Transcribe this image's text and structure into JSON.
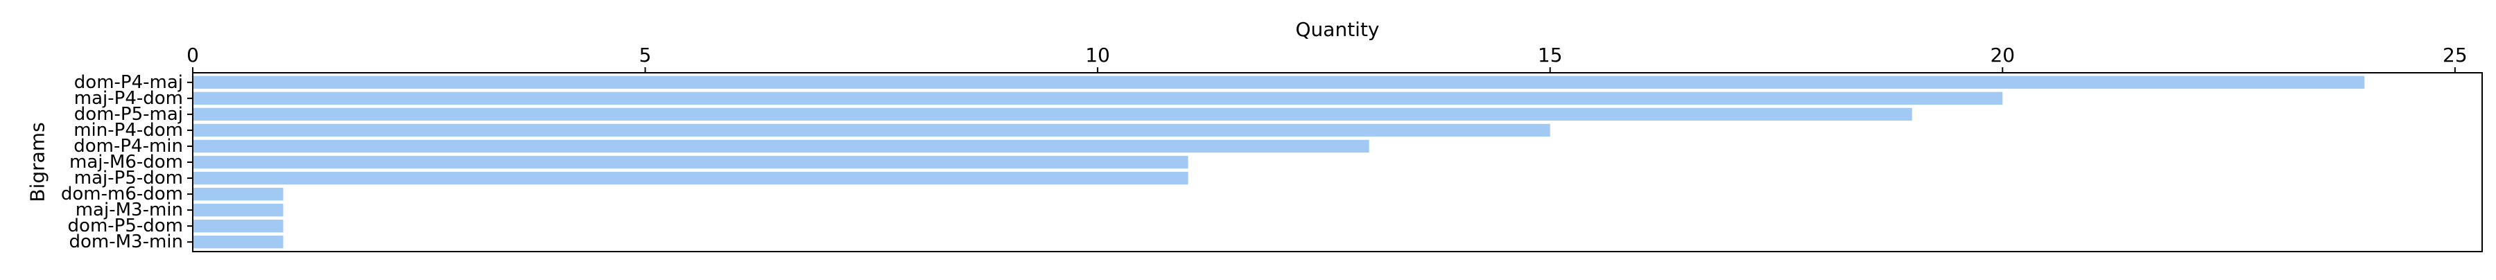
{
  "chart_data": {
    "type": "bar",
    "orientation": "horizontal",
    "xlabel": "Quantity",
    "ylabel": "Bigrams",
    "xlim": [
      0,
      25.3
    ],
    "xticks": [
      0,
      5,
      10,
      15,
      20,
      25
    ],
    "x_axis_position": "top",
    "grid": false,
    "legend": "none",
    "bar_color": "#a1c9f4",
    "categories": [
      "dom-P4-maj",
      "maj-P4-dom",
      "dom-P5-maj",
      "min-P4-dom",
      "dom-P4-min",
      "maj-M6-dom",
      "maj-P5-dom",
      "dom-m6-dom",
      "maj-M3-min",
      "dom-P5-dom",
      "dom-M3-min"
    ],
    "values": [
      24,
      20,
      19,
      15,
      13,
      11,
      11,
      1,
      1,
      1,
      1
    ]
  }
}
